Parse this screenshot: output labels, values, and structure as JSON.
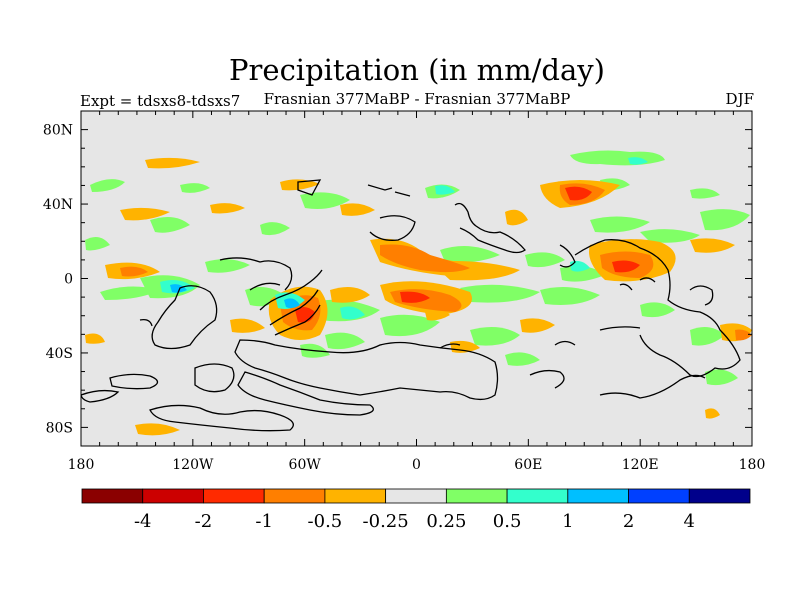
{
  "title": "Precipitation (in mm/day)",
  "subtitle_left": "Expt = tdsxs8-tdsxs7",
  "subtitle_center": "Frasnian 377MaBP - Frasnian 377MaBP",
  "subtitle_right": "DJF",
  "map": {
    "projection": "cylindrical equidistant",
    "lon_range": [
      -180,
      180
    ],
    "lat_range": [
      -90,
      90
    ],
    "background_color": "#e6e6e6",
    "lat_ticks": [
      "80N",
      "40N",
      "0",
      "40S",
      "80S"
    ],
    "lon_ticks": [
      "180",
      "120W",
      "60W",
      "0",
      "60E",
      "120E",
      "180"
    ]
  },
  "colorbar": {
    "colors": [
      "#8b0000",
      "#cc0000",
      "#ff2a00",
      "#ff7f00",
      "#ffb300",
      "#e6e6e6",
      "#80ff66",
      "#33ffcc",
      "#00bfff",
      "#0040ff",
      "#00008b"
    ],
    "labels": [
      "-4",
      "-2",
      "-1",
      "-0.5",
      "-0.25",
      "0.25",
      "0.5",
      "1",
      "2",
      "4"
    ]
  }
}
